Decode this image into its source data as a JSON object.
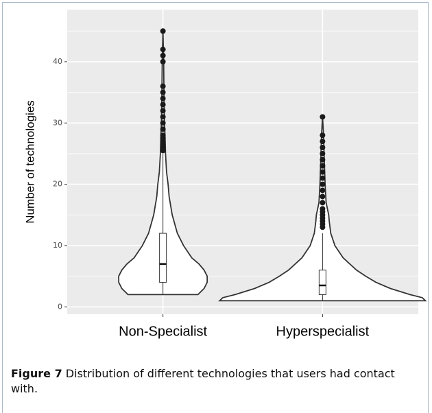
{
  "chart_data": {
    "type": "violin",
    "ylabel": "Number of technologies",
    "categories": [
      "Non-Specialist",
      "Hyperspecialist"
    ],
    "ylim": [
      -1.2,
      48.5
    ],
    "yticks": [
      0,
      10,
      20,
      30,
      40
    ],
    "minor_yticks": [
      5,
      15,
      25,
      35,
      45
    ],
    "grid": true,
    "series": [
      {
        "density_y": [
          2,
          3,
          4,
          5,
          6,
          7,
          8,
          10,
          12,
          15,
          18,
          20,
          22,
          25,
          28,
          30,
          35,
          40,
          45
        ],
        "density": [
          0.34,
          0.4,
          0.43,
          0.43,
          0.4,
          0.35,
          0.28,
          0.2,
          0.14,
          0.09,
          0.06,
          0.05,
          0.035,
          0.025,
          0.02,
          0.015,
          0.01,
          0.007,
          0
        ],
        "whisker_low": 2,
        "q1": 4,
        "median": 7,
        "q3": 12,
        "whisker_high": 25,
        "outliers": [
          25.5,
          26,
          26.5,
          27,
          27.5,
          28,
          29,
          30,
          31,
          32,
          33,
          34,
          35,
          36,
          40,
          41,
          42,
          45
        ]
      },
      {
        "density_y": [
          1,
          1.5,
          2,
          3,
          4,
          5,
          6,
          8,
          10,
          12,
          14,
          15,
          17,
          20,
          25,
          28,
          31
        ],
        "density": [
          1.0,
          0.97,
          0.85,
          0.66,
          0.52,
          0.42,
          0.33,
          0.2,
          0.12,
          0.08,
          0.065,
          0.06,
          0.035,
          0.025,
          0.015,
          0.01,
          0
        ],
        "whisker_low": 1,
        "q1": 2,
        "median": 3.5,
        "q3": 6,
        "whisker_high": 12,
        "outliers": [
          13,
          13.5,
          14,
          14.5,
          15,
          15.5,
          16,
          17,
          18,
          19,
          20,
          21,
          22,
          23,
          24,
          25,
          26,
          27,
          28,
          31
        ]
      }
    ]
  },
  "caption": {
    "label": "Figure 7",
    "text": "Distribution of different technologies that users had contact with."
  }
}
